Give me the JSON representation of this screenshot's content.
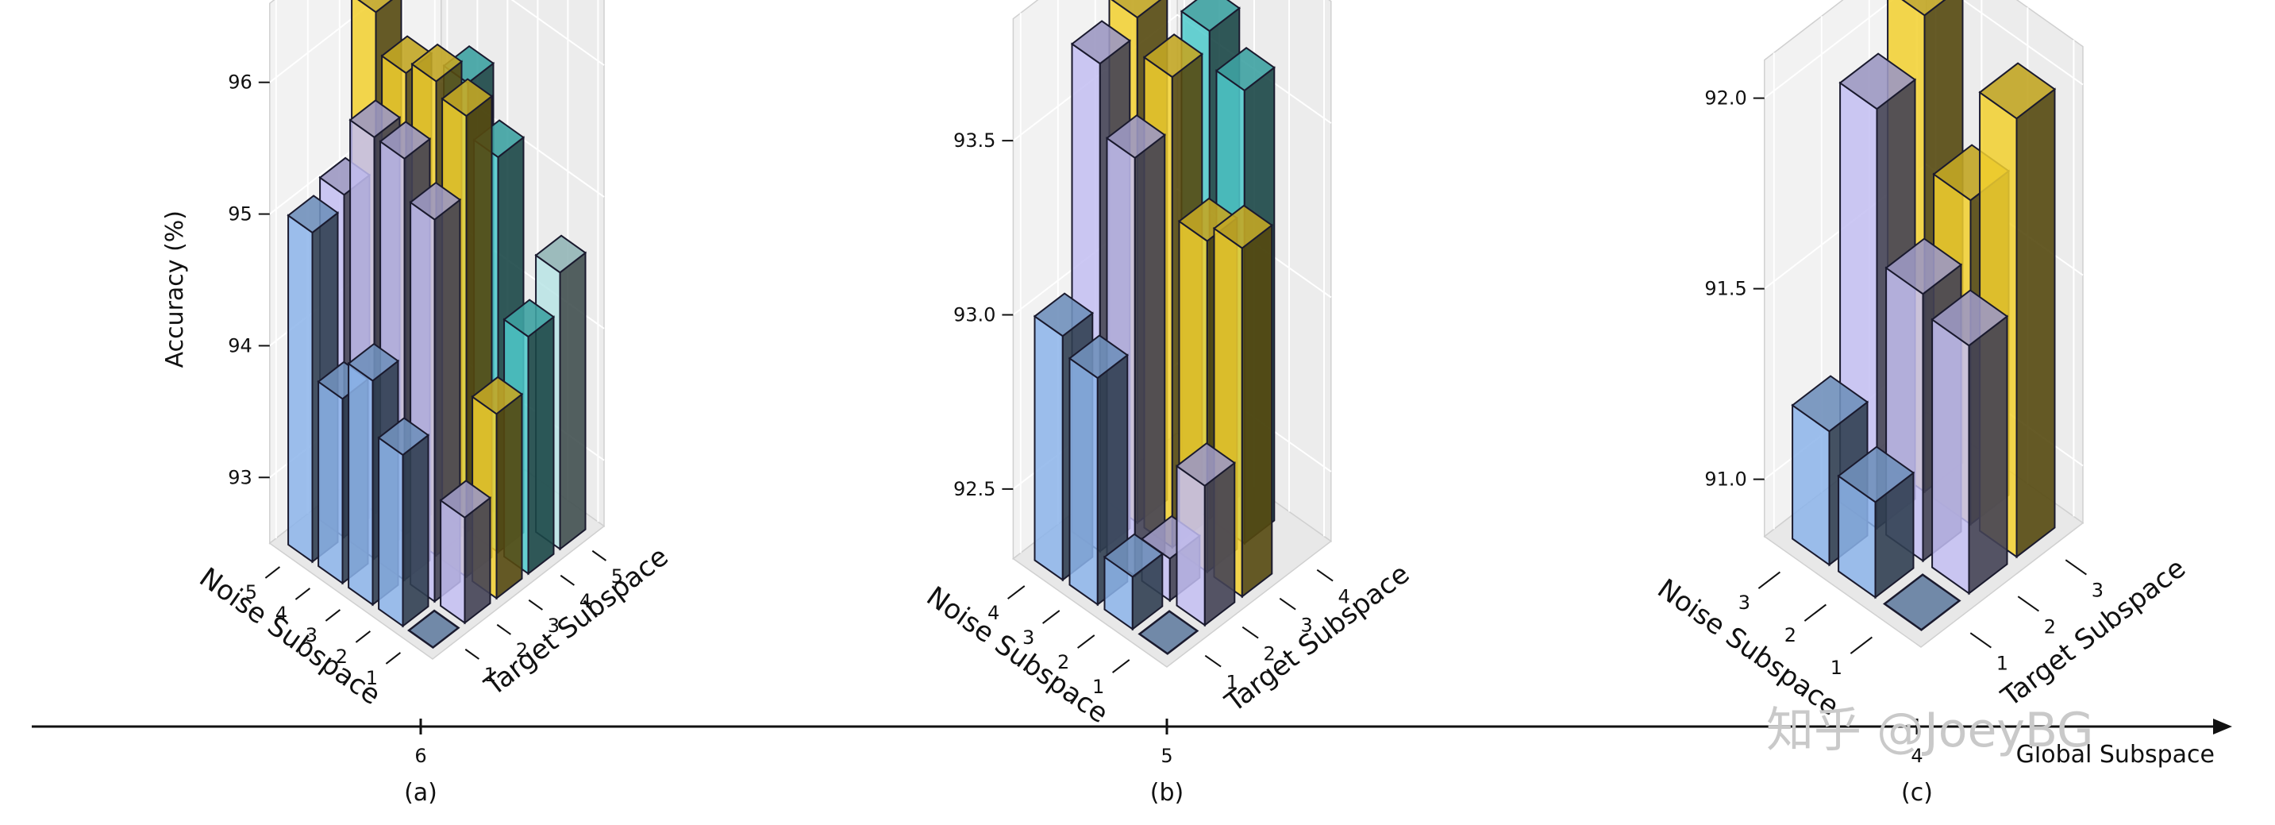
{
  "watermark": "知乎 @JoeyBG",
  "global_axis": {
    "label": "Global Subspace",
    "ticks": [
      "6",
      "5",
      "4"
    ]
  },
  "colors": {
    "noise": [
      "#8cb4ea",
      "#c3bef2"
    ],
    "target": [
      "#f2d02e",
      "#4ecacb",
      "#b9e4e5"
    ],
    "global_base": "#7189a8",
    "edge": "#1a1a2e"
  },
  "chart_data": [
    {
      "type": "bar3d",
      "caption": "(a)",
      "global_subspace": "6",
      "ylabel": "Accuracy (%)",
      "xlabel": "Noise Subspace",
      "zlabel": "Target Subspace",
      "noise_ticks": [
        "1",
        "2",
        "3",
        "4",
        "5"
      ],
      "target_ticks": [
        "1",
        "2",
        "3",
        "4",
        "5"
      ],
      "yticks": [
        "93",
        "94",
        "95",
        "96"
      ],
      "ylim": [
        92.5,
        96.6
      ],
      "noise_bars": [
        {
          "noise": "5",
          "target": "1",
          "value": 95.0
        },
        {
          "noise": "4",
          "target": "1",
          "value": 93.9
        },
        {
          "noise": "3",
          "target": "1",
          "value": 94.2
        },
        {
          "noise": "2",
          "target": "1",
          "value": 93.8
        },
        {
          "noise": "5",
          "target": "2",
          "value": 95.1
        },
        {
          "noise": "4",
          "target": "2",
          "value": 95.7
        },
        {
          "noise": "3",
          "target": "2",
          "value": 95.7
        },
        {
          "noise": "2",
          "target": "2",
          "value": 95.4
        },
        {
          "noise": "1",
          "target": "2",
          "value": 93.3
        }
      ],
      "target_bars": [
        {
          "noise": "5",
          "target": "3",
          "value": 96.3
        },
        {
          "noise": "4",
          "target": "3",
          "value": 96.0
        },
        {
          "noise": "3",
          "target": "3",
          "value": 96.1
        },
        {
          "noise": "2",
          "target": "3",
          "value": 96.0
        },
        {
          "noise": "1",
          "target": "3",
          "value": 93.9
        },
        {
          "noise": "3",
          "target": "4",
          "value": 95.9
        },
        {
          "noise": "2",
          "target": "4",
          "value": 95.5
        },
        {
          "noise": "1",
          "target": "4",
          "value": 94.3
        },
        {
          "noise": "1",
          "target": "5",
          "value": 94.6
        }
      ],
      "global_base": {
        "noise": "1",
        "target": "1"
      }
    },
    {
      "type": "bar3d",
      "caption": "(b)",
      "global_subspace": "5",
      "xlabel": "Noise Subspace",
      "zlabel": "Target Subspace",
      "noise_ticks": [
        "1",
        "2",
        "3",
        "4"
      ],
      "target_ticks": [
        "1",
        "2",
        "3",
        "4"
      ],
      "yticks": [
        "92.5",
        "93.0",
        "93.5"
      ],
      "ylim": [
        92.3,
        93.85
      ],
      "noise_bars": [
        {
          "noise": "4",
          "target": "1",
          "value": 93.0
        },
        {
          "noise": "3",
          "target": "1",
          "value": 92.95
        },
        {
          "noise": "2",
          "target": "1",
          "value": 92.45
        },
        {
          "noise": "4",
          "target": "2",
          "value": 93.7
        },
        {
          "noise": "3",
          "target": "2",
          "value": 93.5
        },
        {
          "noise": "2",
          "target": "2",
          "value": 92.42
        },
        {
          "noise": "1",
          "target": "2",
          "value": 92.7
        }
      ],
      "target_bars": [
        {
          "noise": "4",
          "target": "3",
          "value": 93.75
        },
        {
          "noise": "3",
          "target": "3",
          "value": 93.65
        },
        {
          "noise": "2",
          "target": "3",
          "value": 93.25
        },
        {
          "noise": "1",
          "target": "3",
          "value": 93.3
        },
        {
          "noise": "3",
          "target": "4",
          "value": 93.7
        },
        {
          "noise": "2",
          "target": "4",
          "value": 93.6
        }
      ],
      "global_base": {
        "noise": "1",
        "target": "1"
      }
    },
    {
      "type": "bar3d",
      "caption": "(c)",
      "global_subspace": "4",
      "xlabel": "Noise Subspace",
      "zlabel": "Target Subspace",
      "noise_ticks": [
        "1",
        "2",
        "3"
      ],
      "target_ticks": [
        "1",
        "2",
        "3"
      ],
      "yticks": [
        "91.0",
        "91.5",
        "92.0"
      ],
      "ylim": [
        90.85,
        92.1
      ],
      "noise_bars": [
        {
          "noise": "3",
          "target": "1",
          "value": 91.2
        },
        {
          "noise": "2",
          "target": "1",
          "value": 91.1
        },
        {
          "noise": "3",
          "target": "2",
          "value": 91.95
        },
        {
          "noise": "2",
          "target": "2",
          "value": 91.55
        },
        {
          "noise": "1",
          "target": "2",
          "value": 91.5
        }
      ],
      "target_bars": [
        {
          "noise": "3",
          "target": "3",
          "value": 92.1
        },
        {
          "noise": "2",
          "target": "3",
          "value": 91.7
        },
        {
          "noise": "1",
          "target": "3",
          "value": 92.0
        }
      ],
      "global_base": {
        "noise": "1",
        "target": "1"
      }
    }
  ]
}
